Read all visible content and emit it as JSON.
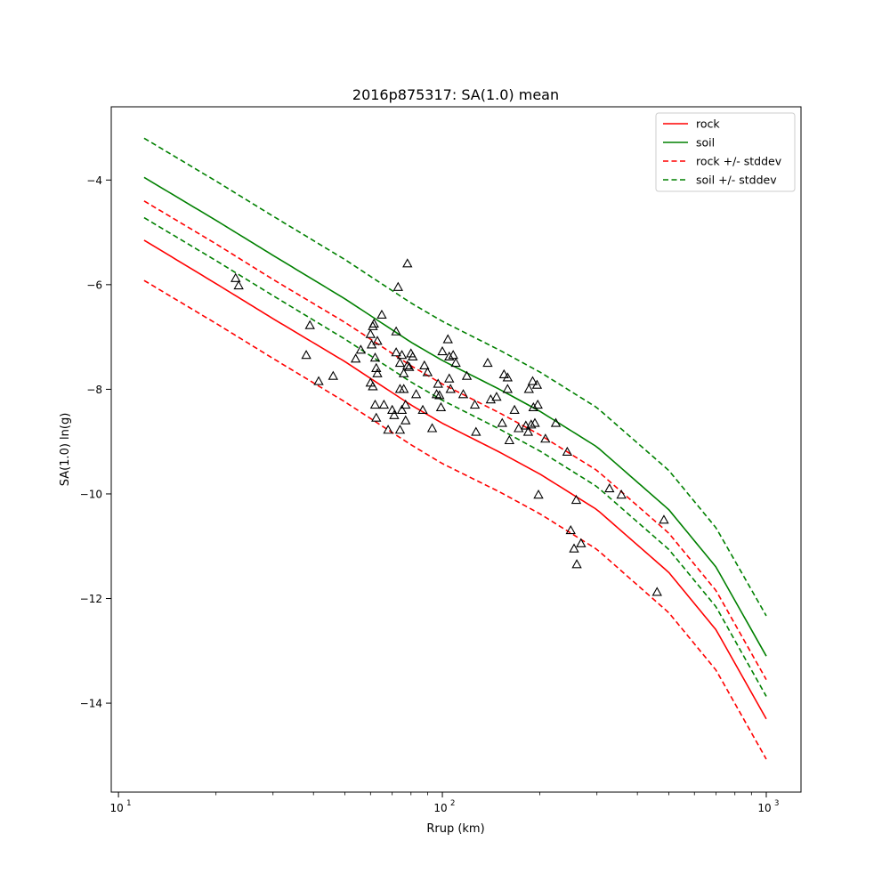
{
  "chart_data": {
    "type": "line",
    "title": "2016p875317: SA(1.0) mean",
    "xlabel": "Rrup (km)",
    "ylabel": "SA(1.0) ln(g)",
    "xscale": "log",
    "xlim": [
      9.5,
      1280
    ],
    "ylim": [
      -15.7,
      -2.6
    ],
    "xticks": [
      {
        "value": 10,
        "base": "10",
        "exp": "1"
      },
      {
        "value": 100,
        "base": "10",
        "exp": "2"
      },
      {
        "value": 1000,
        "base": "10",
        "exp": "3"
      }
    ],
    "yticks": [
      {
        "value": -4,
        "label": "−4"
      },
      {
        "value": -6,
        "label": "−6"
      },
      {
        "value": -8,
        "label": "−8"
      },
      {
        "value": -10,
        "label": "−10"
      },
      {
        "value": -12,
        "label": "−12"
      },
      {
        "value": -14,
        "label": "−14"
      }
    ],
    "grid": false,
    "legend_position": "top-right",
    "legend": [
      {
        "label": "rock",
        "color": "#ff0000",
        "style": "solid"
      },
      {
        "label": "soil",
        "color": "#008000",
        "style": "solid"
      },
      {
        "label": "rock +/- stddev",
        "color": "#ff0000",
        "style": "dashed"
      },
      {
        "label": "soil +/- stddev",
        "color": "#008000",
        "style": "dashed"
      }
    ],
    "x": [
      12,
      20,
      30,
      50,
      80,
      100,
      150,
      200,
      300,
      500,
      700,
      1000
    ],
    "series": [
      {
        "name": "rock",
        "color": "#ff0000",
        "style": "solid",
        "values": [
          -5.15,
          -5.98,
          -6.65,
          -7.47,
          -8.3,
          -8.65,
          -9.2,
          -9.62,
          -10.3,
          -11.5,
          -12.6,
          -14.3
        ]
      },
      {
        "name": "soil",
        "color": "#008000",
        "style": "solid",
        "values": [
          -3.95,
          -4.77,
          -5.44,
          -6.27,
          -7.1,
          -7.45,
          -8.0,
          -8.42,
          -9.1,
          -10.3,
          -11.4,
          -13.1
        ]
      },
      {
        "name": "rock +/- stddev",
        "color": "#ff0000",
        "style": "dashed",
        "values": [
          -4.4,
          -5.22,
          -5.9,
          -6.72,
          -7.55,
          -7.9,
          -8.45,
          -8.87,
          -9.55,
          -10.75,
          -11.85,
          -13.55
        ]
      },
      {
        "name": "rock +/- stddev",
        "color": "#ff0000",
        "style": "dashed",
        "values": [
          -5.92,
          -6.74,
          -7.41,
          -8.24,
          -9.06,
          -9.42,
          -9.96,
          -10.38,
          -11.06,
          -12.27,
          -13.37,
          -15.07
        ]
      },
      {
        "name": "soil +/- stddev",
        "color": "#008000",
        "style": "dashed",
        "values": [
          -3.2,
          -4.02,
          -4.69,
          -5.52,
          -6.35,
          -6.7,
          -7.25,
          -7.67,
          -8.35,
          -9.55,
          -10.65,
          -12.33
        ]
      },
      {
        "name": "soil +/- stddev",
        "color": "#008000",
        "style": "dashed",
        "values": [
          -4.72,
          -5.54,
          -6.21,
          -7.04,
          -7.86,
          -8.21,
          -8.76,
          -9.18,
          -9.86,
          -11.06,
          -12.16,
          -13.87
        ]
      }
    ],
    "observations": [
      {
        "x": 23,
        "y": -5.88
      },
      {
        "x": 23.5,
        "y": -6.02
      },
      {
        "x": 38,
        "y": -7.35
      },
      {
        "x": 39,
        "y": -6.78
      },
      {
        "x": 41.5,
        "y": -7.85
      },
      {
        "x": 46,
        "y": -7.75
      },
      {
        "x": 54,
        "y": -7.42
      },
      {
        "x": 56,
        "y": -7.25
      },
      {
        "x": 60,
        "y": -6.95
      },
      {
        "x": 60.5,
        "y": -7.15
      },
      {
        "x": 61,
        "y": -6.8
      },
      {
        "x": 61.5,
        "y": -6.75
      },
      {
        "x": 62,
        "y": -7.4
      },
      {
        "x": 62.5,
        "y": -7.6
      },
      {
        "x": 63,
        "y": -7.08
      },
      {
        "x": 60,
        "y": -7.88
      },
      {
        "x": 61,
        "y": -7.95
      },
      {
        "x": 62,
        "y": -8.3
      },
      {
        "x": 62.5,
        "y": -8.55
      },
      {
        "x": 63,
        "y": -7.7
      },
      {
        "x": 65,
        "y": -6.58
      },
      {
        "x": 66,
        "y": -8.3
      },
      {
        "x": 68,
        "y": -8.78
      },
      {
        "x": 70,
        "y": -8.4
      },
      {
        "x": 71,
        "y": -8.5
      },
      {
        "x": 72,
        "y": -7.3
      },
      {
        "x": 72,
        "y": -6.9
      },
      {
        "x": 73,
        "y": -6.05
      },
      {
        "x": 74,
        "y": -7.5
      },
      {
        "x": 74,
        "y": -8.0
      },
      {
        "x": 75,
        "y": -7.35
      },
      {
        "x": 75,
        "y": -8.4
      },
      {
        "x": 76,
        "y": -7.7
      },
      {
        "x": 77,
        "y": -8.6
      },
      {
        "x": 77,
        "y": -8.3
      },
      {
        "x": 78,
        "y": -7.55
      },
      {
        "x": 78,
        "y": -5.6
      },
      {
        "x": 79,
        "y": -7.58
      },
      {
        "x": 80,
        "y": -7.32
      },
      {
        "x": 81,
        "y": -7.38
      },
      {
        "x": 74,
        "y": -8.78
      },
      {
        "x": 76,
        "y": -8.0
      },
      {
        "x": 83,
        "y": -8.1
      },
      {
        "x": 87,
        "y": -8.4
      },
      {
        "x": 88,
        "y": -7.55
      },
      {
        "x": 90,
        "y": -7.68
      },
      {
        "x": 93,
        "y": -8.75
      },
      {
        "x": 96,
        "y": -8.1
      },
      {
        "x": 97,
        "y": -7.9
      },
      {
        "x": 98,
        "y": -8.12
      },
      {
        "x": 99,
        "y": -8.35
      },
      {
        "x": 100,
        "y": -7.28
      },
      {
        "x": 104,
        "y": -7.05
      },
      {
        "x": 105,
        "y": -7.38
      },
      {
        "x": 105,
        "y": -7.8
      },
      {
        "x": 106,
        "y": -8.0
      },
      {
        "x": 108,
        "y": -7.35
      },
      {
        "x": 110,
        "y": -7.5
      },
      {
        "x": 116,
        "y": -8.1
      },
      {
        "x": 119,
        "y": -7.75
      },
      {
        "x": 126,
        "y": -8.3
      },
      {
        "x": 127,
        "y": -8.82
      },
      {
        "x": 138,
        "y": -7.5
      },
      {
        "x": 141,
        "y": -8.2
      },
      {
        "x": 147,
        "y": -8.15
      },
      {
        "x": 153,
        "y": -8.65
      },
      {
        "x": 155,
        "y": -7.72
      },
      {
        "x": 159,
        "y": -8.0
      },
      {
        "x": 159,
        "y": -7.78
      },
      {
        "x": 161,
        "y": -8.98
      },
      {
        "x": 167,
        "y": -8.4
      },
      {
        "x": 172,
        "y": -8.75
      },
      {
        "x": 181,
        "y": -8.7
      },
      {
        "x": 184,
        "y": -8.82
      },
      {
        "x": 185,
        "y": -8.0
      },
      {
        "x": 188,
        "y": -8.68
      },
      {
        "x": 190,
        "y": -7.85
      },
      {
        "x": 191,
        "y": -8.35
      },
      {
        "x": 193,
        "y": -8.65
      },
      {
        "x": 196,
        "y": -7.92
      },
      {
        "x": 197,
        "y": -8.3
      },
      {
        "x": 198,
        "y": -10.02
      },
      {
        "x": 208,
        "y": -8.95
      },
      {
        "x": 224,
        "y": -8.65
      },
      {
        "x": 243,
        "y": -9.2
      },
      {
        "x": 249,
        "y": -10.7
      },
      {
        "x": 255,
        "y": -11.05
      },
      {
        "x": 259,
        "y": -10.12
      },
      {
        "x": 260,
        "y": -11.35
      },
      {
        "x": 268,
        "y": -10.95
      },
      {
        "x": 328,
        "y": -9.9
      },
      {
        "x": 357,
        "y": -10.02
      },
      {
        "x": 460,
        "y": -11.88
      },
      {
        "x": 483,
        "y": -10.5
      }
    ]
  }
}
